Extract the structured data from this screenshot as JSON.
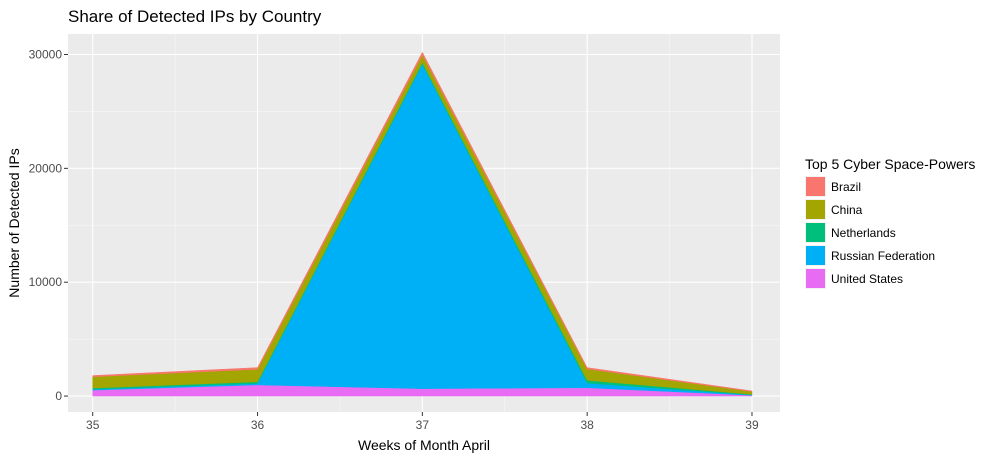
{
  "chart_data": {
    "type": "area",
    "stacked": true,
    "title": "Share of Detected IPs by Country",
    "xlabel": "Weeks of Month April",
    "ylabel": "Number of Detected IPs",
    "x": [
      35,
      36,
      37,
      38,
      39
    ],
    "x_ticks": [
      "35",
      "36",
      "37",
      "38",
      "39"
    ],
    "y_ticks": [
      0,
      10000,
      20000,
      30000
    ],
    "y_tick_labels": [
      "0",
      "10000",
      "20000",
      "30000"
    ],
    "xlim": [
      34.85,
      39.17
    ],
    "ylim": [
      -1400,
      31800
    ],
    "grid": true,
    "legend": {
      "title": "Top 5 Cyber Space-Powers",
      "placement": "right"
    },
    "series": [
      {
        "name": "Brazil",
        "color": "#F8766D",
        "values": [
          100,
          150,
          250,
          120,
          50
        ]
      },
      {
        "name": "China",
        "color": "#A3A500",
        "values": [
          1000,
          1100,
          650,
          1000,
          250
        ]
      },
      {
        "name": "Netherlands",
        "color": "#00BF7D",
        "values": [
          100,
          150,
          150,
          250,
          50
        ]
      },
      {
        "name": "Russian Federation",
        "color": "#00B0F6",
        "values": [
          80,
          120,
          28500,
          400,
          30
        ]
      },
      {
        "name": "United States",
        "color": "#E76BF3",
        "values": [
          520,
          980,
          650,
          730,
          70
        ]
      }
    ]
  }
}
